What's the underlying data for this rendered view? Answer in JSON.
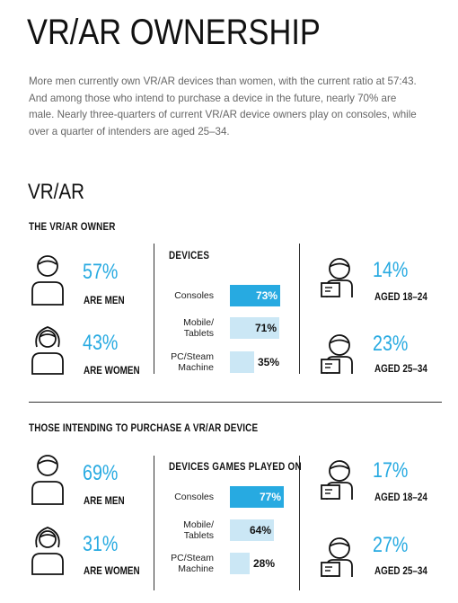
{
  "title": "VR/AR OWNERSHIP",
  "intro": "More men currently own VR/AR devices than women, with the current ratio at 57:43. And among those who intend to purchase a device in the future, nearly 70% are male. Nearly three-quarters of current VR/AR device owners play on consoles, while over a quarter of intenders are aged 25–34.",
  "subtitle": "VR/AR",
  "colors": {
    "accent": "#27aae1",
    "bar_dark": "#27aae1",
    "bar_light": "#cbe7f5",
    "text": "#111111"
  },
  "owner": {
    "heading": "THE VR/AR OWNER",
    "men": {
      "pct": "57%",
      "label": "ARE MEN",
      "icon": "man-icon"
    },
    "women": {
      "pct": "43%",
      "label": "ARE WOMEN",
      "icon": "woman-icon"
    },
    "devices_heading": "DEVICES",
    "devices": [
      {
        "name": "Consoles",
        "value": 73,
        "label": "73%"
      },
      {
        "name": "Mobile/\nTablets",
        "value": 71,
        "label": "71%"
      },
      {
        "name": "PC/Steam\nMachine",
        "value": 35,
        "label": "35%"
      }
    ],
    "age1": {
      "pct": "14%",
      "label": "AGED 18–24",
      "icon": "person-at-laptop-icon"
    },
    "age2": {
      "pct": "23%",
      "label": "AGED 25–34",
      "icon": "person-at-laptop-icon"
    }
  },
  "intender": {
    "heading": "THOSE INTENDING TO PURCHASE A VR/AR DEVICE",
    "men": {
      "pct": "69%",
      "label": "ARE MEN",
      "icon": "man-icon"
    },
    "women": {
      "pct": "31%",
      "label": "ARE WOMEN",
      "icon": "woman-icon"
    },
    "devices_heading": "DEVICES GAMES PLAYED ON",
    "devices": [
      {
        "name": "Consoles",
        "value": 77,
        "label": "77%"
      },
      {
        "name": "Mobile/\nTablets",
        "value": 64,
        "label": "64%"
      },
      {
        "name": "PC/Steam\nMachine",
        "value": 28,
        "label": "28%"
      }
    ],
    "age1": {
      "pct": "17%",
      "label": "AGED 18–24",
      "icon": "person-at-laptop-icon"
    },
    "age2": {
      "pct": "27%",
      "label": "AGED 25–34",
      "icon": "person-at-laptop-icon"
    }
  }
}
